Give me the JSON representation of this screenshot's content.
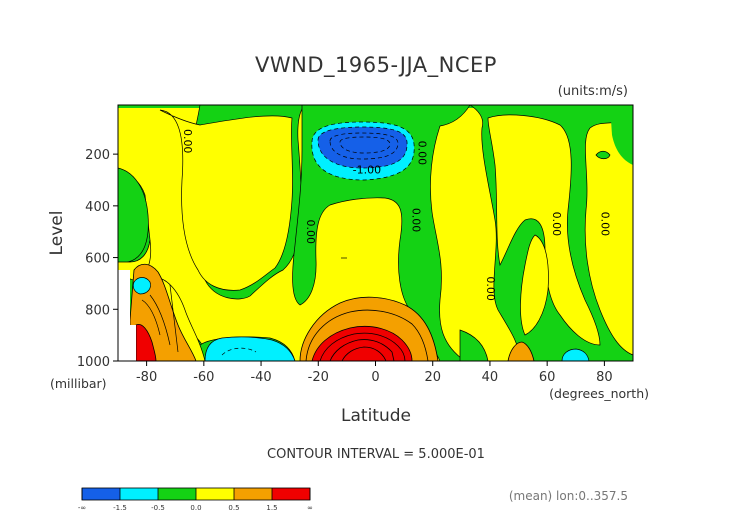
{
  "chart_data": {
    "type": "heatmap",
    "title": "VWND_1965-JJA_NCEP",
    "units_label": "(units:m/s)",
    "xlabel": "Latitude",
    "x_units_label": "(degrees_north)",
    "ylabel": "Level",
    "y_units_label": "(millibar)",
    "xlim": [
      -90,
      90
    ],
    "ylim": [
      1000,
      10
    ],
    "x_ticks": [
      -80,
      -60,
      -40,
      -20,
      0,
      20,
      40,
      60,
      80
    ],
    "x_tick_labels": [
      "-80",
      "-60",
      "-40",
      "-20",
      "0",
      "20",
      "40",
      "60",
      "80"
    ],
    "y_ticks": [
      200,
      400,
      600,
      800,
      1000
    ],
    "y_tick_labels": [
      "200",
      "400",
      "600",
      "800",
      "1000"
    ],
    "contour_interval_label": "CONTOUR INTERVAL = 5.000E-01",
    "mean_label": "(mean) lon:0..357.5",
    "contour_labels": [
      {
        "text": "0.00",
        "x": -67,
        "y": 150
      },
      {
        "text": "0.00",
        "x": -24,
        "y": 500
      },
      {
        "text": "-1.00",
        "x": -3,
        "y": 275
      },
      {
        "text": "0.00",
        "x": 15,
        "y": 195
      },
      {
        "text": "0.00",
        "x": 13,
        "y": 455
      },
      {
        "text": "0.00",
        "x": 39,
        "y": 720
      },
      {
        "text": "0.00",
        "x": 62,
        "y": 470
      },
      {
        "text": "0.00",
        "x": 79,
        "y": 470
      }
    ],
    "regions": [
      {
        "range": "-1.5 to -1.0",
        "lat": [
          -22,
          12
        ],
        "level": [
          110,
          270
        ]
      },
      {
        "range": "-1.0 to -0.5",
        "lat": [
          -27,
          17
        ],
        "level": [
          90,
          320
        ]
      },
      {
        "range": "-0.5 to 0.0",
        "lat": [
          -34,
          26
        ],
        "level": [
          60,
          360
        ]
      },
      {
        "range": "0.5 to 1.5",
        "lat": [
          -22,
          25
        ],
        "level": [
          780,
          1000
        ]
      },
      {
        "range": ">1.5",
        "lat": [
          -16,
          12
        ],
        "level": [
          870,
          1000
        ]
      },
      {
        "range": "0.5 to 1.5",
        "lat": [
          -91,
          -66
        ],
        "level": [
          650,
          1000
        ]
      },
      {
        "range": ">1.5",
        "lat": [
          -88,
          -83
        ],
        "level": [
          900,
          1000
        ]
      },
      {
        "range": "-1.0 to -0.5",
        "lat": [
          -59,
          -32
        ],
        "level": [
          910,
          1000
        ]
      },
      {
        "range": "-1.0 to -0.5",
        "lat": [
          -86,
          -80
        ],
        "level": [
          720,
          790
        ]
      },
      {
        "range": "-1.0 to -0.5",
        "lat": [
          -80,
          -79
        ],
        "level": [
          975,
          1000
        ]
      },
      {
        "range": "-1.0 to -0.5",
        "lat": [
          64,
          71
        ],
        "level": [
          960,
          1000
        ]
      },
      {
        "range": "0.5 to 1.5",
        "lat": [
          44,
          55
        ],
        "level": [
          930,
          1000
        ]
      }
    ],
    "colorbar": {
      "colors": [
        "#1560e8",
        "#00f0ff",
        "#14d214",
        "#ffff00",
        "#f4a000",
        "#f00000"
      ],
      "tick_labels": [
        "-∞",
        "-1.5",
        "-0.5",
        "0.0",
        "0.5",
        "1.5",
        "∞"
      ]
    }
  }
}
